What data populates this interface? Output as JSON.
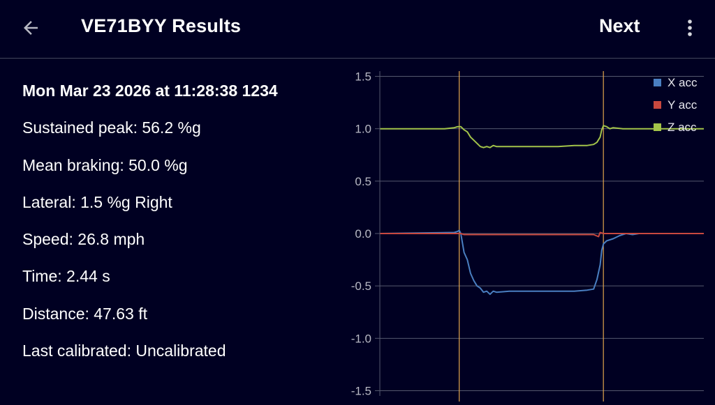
{
  "appbar": {
    "title": "VE71BYY Results",
    "next_label": "Next",
    "back_icon": "arrow-back-icon",
    "more_icon": "more-vert-icon"
  },
  "results": {
    "datetime": "Mon Mar 23 2026 at 11:28:38 1234",
    "sustained_peak": "Sustained peak: 56.2 %g",
    "mean_braking": "Mean braking: 50.0 %g",
    "lateral": "Lateral: 1.5 %g Right",
    "speed": "Speed: 26.8 mph",
    "time": "Time: 2.44 s",
    "distance": "Distance: 47.63 ft",
    "last_calibrated": "Last calibrated: Uncalibrated"
  },
  "colors": {
    "background": "#000022",
    "grid": "#55596e",
    "marker": "#e3a64c",
    "x": "#4a7fc1",
    "y": "#c8483f",
    "z": "#a3c44a"
  },
  "chart_data": {
    "type": "line",
    "ylim": [
      -1.55,
      1.55
    ],
    "yticks": [
      "1.5",
      "1.0",
      "0.5",
      "0.0",
      "-0.5",
      "-1.0",
      "-1.5"
    ],
    "ytick_values": [
      1.5,
      1.0,
      0.5,
      0.0,
      -0.5,
      -1.0,
      -1.5
    ],
    "grid": true,
    "legend_position": "top-right",
    "xlim": [
      0,
      100
    ],
    "markers_x": [
      24.5,
      69.0
    ],
    "series": [
      {
        "name": "X acc",
        "color": "#4a7fc1",
        "x": [
          0,
          23,
          24,
          24.5,
          25,
          26,
          27,
          28,
          29,
          30,
          31,
          32,
          33,
          34,
          35,
          36,
          40,
          45,
          50,
          55,
          60,
          64,
          66,
          67,
          68,
          68.5,
          69,
          70,
          72,
          74,
          76,
          78,
          80,
          85,
          90,
          95,
          100
        ],
        "y": [
          0,
          0.01,
          0.02,
          0.03,
          0.0,
          -0.18,
          -0.25,
          -0.38,
          -0.45,
          -0.5,
          -0.52,
          -0.56,
          -0.55,
          -0.58,
          -0.55,
          -0.56,
          -0.55,
          -0.55,
          -0.55,
          -0.55,
          -0.55,
          -0.54,
          -0.53,
          -0.44,
          -0.3,
          -0.16,
          -0.1,
          -0.07,
          -0.05,
          -0.02,
          0.0,
          -0.01,
          0.0,
          0.0,
          0.0,
          0.0,
          0.0
        ]
      },
      {
        "name": "Y acc",
        "color": "#c8483f",
        "x": [
          0,
          10,
          20,
          24,
          25,
          26,
          30,
          40,
          50,
          60,
          66,
          67.5,
          68,
          69,
          70,
          75,
          80,
          90,
          100
        ],
        "y": [
          0.0,
          0.0,
          0.0,
          0.0,
          0.0,
          -0.01,
          -0.01,
          -0.01,
          -0.01,
          -0.01,
          -0.01,
          -0.03,
          0.01,
          0.0,
          0.0,
          0.0,
          0.0,
          0.0,
          0.0
        ]
      },
      {
        "name": "Z acc",
        "color": "#a3c44a",
        "x": [
          0,
          10,
          20,
          23,
          24,
          25,
          26,
          27,
          28,
          29,
          30,
          31,
          32,
          33,
          34,
          35,
          36,
          40,
          45,
          50,
          55,
          60,
          64,
          66,
          67,
          68,
          68.5,
          69,
          70,
          71,
          72,
          75,
          80,
          90,
          100
        ],
        "y": [
          1.0,
          1.0,
          1.0,
          1.01,
          1.02,
          1.02,
          0.99,
          0.97,
          0.92,
          0.89,
          0.86,
          0.83,
          0.82,
          0.83,
          0.82,
          0.84,
          0.83,
          0.83,
          0.83,
          0.83,
          0.83,
          0.84,
          0.84,
          0.85,
          0.87,
          0.92,
          0.99,
          1.03,
          1.02,
          1.0,
          1.01,
          1.0,
          1.0,
          1.0,
          1.0
        ]
      }
    ]
  }
}
